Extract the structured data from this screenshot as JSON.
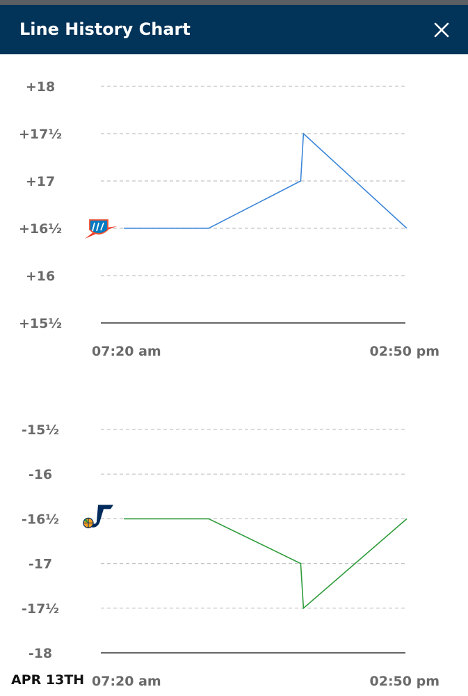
{
  "header": {
    "title": "Line History Chart",
    "close_icon": "close-icon"
  },
  "date_label": "APR 13TH",
  "colors": {
    "header_bg": "#023358",
    "okc_line": "#3b86d8",
    "utah_line": "#2e9b3a"
  },
  "chart_data": [
    {
      "type": "line",
      "team_icon": "okc-thunder-logo",
      "ylim": [
        15.5,
        18
      ],
      "y_ticks": [
        {
          "value": 18,
          "label": "+18"
        },
        {
          "value": 17.5,
          "label": "+17½"
        },
        {
          "value": 17,
          "label": "+17"
        },
        {
          "value": 16.5,
          "label": "+16½"
        },
        {
          "value": 16,
          "label": "+16"
        },
        {
          "value": 15.5,
          "label": "+15½"
        }
      ],
      "x_labels": [
        "07:20 am",
        "02:50 pm"
      ],
      "grid": true,
      "series": [
        {
          "x": [
            0,
            0.3,
            0.625,
            0.635,
            1
          ],
          "y": [
            16.5,
            16.5,
            17,
            17.5,
            16.5
          ]
        }
      ]
    },
    {
      "type": "line",
      "team_icon": "utah-jazz-logo",
      "ylim": [
        -18,
        -15.5
      ],
      "y_ticks": [
        {
          "value": -15.5,
          "label": "-15½"
        },
        {
          "value": -16,
          "label": "-16"
        },
        {
          "value": -16.5,
          "label": "-16½"
        },
        {
          "value": -17,
          "label": "-17"
        },
        {
          "value": -17.5,
          "label": "-17½"
        },
        {
          "value": -18,
          "label": "-18"
        }
      ],
      "x_labels": [
        "07:20 am",
        "02:50 pm"
      ],
      "grid": true,
      "series": [
        {
          "x": [
            0,
            0.3,
            0.625,
            0.635,
            1
          ],
          "y": [
            -16.5,
            -16.5,
            -17,
            -17.5,
            -16.5
          ]
        }
      ]
    }
  ]
}
